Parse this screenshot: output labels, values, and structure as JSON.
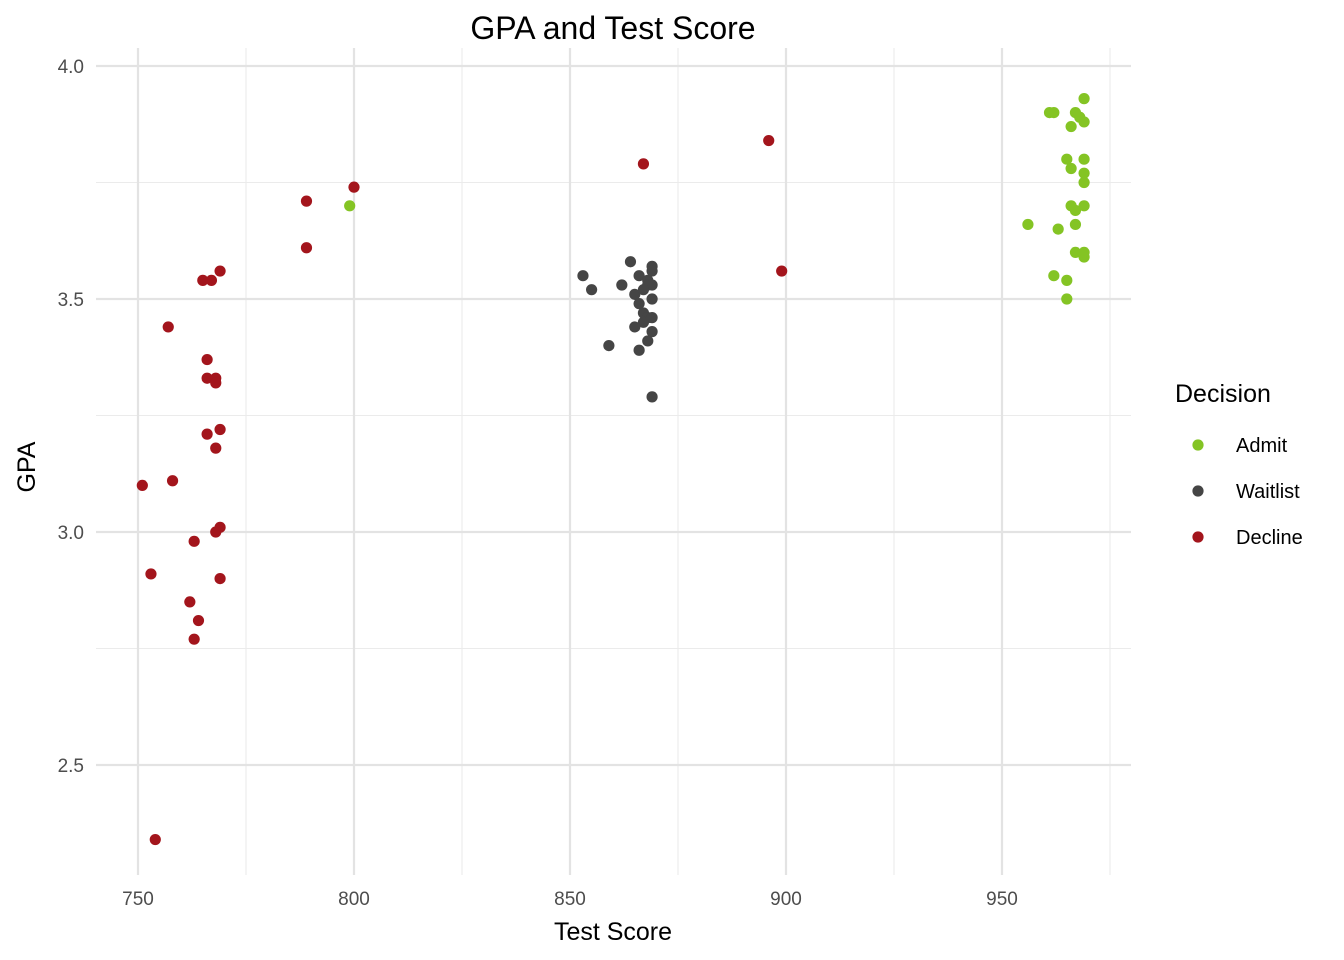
{
  "chart_data": {
    "type": "scatter",
    "title": "GPA and Test Score",
    "xlabel": "Test Score",
    "ylabel": "GPA",
    "xlim": [
      745,
      983
    ],
    "ylim": [
      2.27,
      4.05
    ],
    "x_ticks": [
      750,
      800,
      850,
      900,
      950
    ],
    "y_ticks": [
      2.5,
      3.0,
      3.5,
      4.0
    ],
    "x_tick_labels": [
      "750",
      "800",
      "850",
      "900",
      "950"
    ],
    "y_tick_labels": [
      "2.5",
      "3.0",
      "3.5",
      "4.0"
    ],
    "grid": true,
    "legend": {
      "title": "Decision",
      "position": "right"
    },
    "series": [
      {
        "name": "Admit",
        "color": "#84c424",
        "points": [
          [
            799,
            3.7
          ],
          [
            969,
            3.93
          ],
          [
            961,
            3.9
          ],
          [
            962,
            3.9
          ],
          [
            967,
            3.9
          ],
          [
            968,
            3.89
          ],
          [
            966,
            3.87
          ],
          [
            969,
            3.88
          ],
          [
            965,
            3.8
          ],
          [
            969,
            3.8
          ],
          [
            966,
            3.78
          ],
          [
            969,
            3.77
          ],
          [
            969,
            3.75
          ],
          [
            966,
            3.7
          ],
          [
            967,
            3.69
          ],
          [
            969,
            3.7
          ],
          [
            956,
            3.66
          ],
          [
            963,
            3.65
          ],
          [
            967,
            3.66
          ],
          [
            967,
            3.6
          ],
          [
            969,
            3.6
          ],
          [
            969,
            3.59
          ],
          [
            962,
            3.55
          ],
          [
            965,
            3.54
          ],
          [
            965,
            3.5
          ]
        ]
      },
      {
        "name": "Waitlist",
        "color": "#454545",
        "points": [
          [
            864,
            3.58
          ],
          [
            869,
            3.57
          ],
          [
            869,
            3.56
          ],
          [
            853,
            3.55
          ],
          [
            866,
            3.55
          ],
          [
            868,
            3.54
          ],
          [
            855,
            3.52
          ],
          [
            862,
            3.53
          ],
          [
            868,
            3.53
          ],
          [
            869,
            3.53
          ],
          [
            865,
            3.51
          ],
          [
            867,
            3.52
          ],
          [
            869,
            3.5
          ],
          [
            866,
            3.49
          ],
          [
            867,
            3.47
          ],
          [
            868,
            3.46
          ],
          [
            869,
            3.46
          ],
          [
            867,
            3.45
          ],
          [
            865,
            3.44
          ],
          [
            869,
            3.43
          ],
          [
            868,
            3.41
          ],
          [
            859,
            3.4
          ],
          [
            866,
            3.39
          ],
          [
            869,
            3.29
          ]
        ]
      },
      {
        "name": "Decline",
        "color": "#a3151c",
        "points": [
          [
            896,
            3.84
          ],
          [
            867,
            3.79
          ],
          [
            800,
            3.74
          ],
          [
            789,
            3.71
          ],
          [
            789,
            3.61
          ],
          [
            899,
            3.56
          ],
          [
            769,
            3.56
          ],
          [
            765,
            3.54
          ],
          [
            767,
            3.54
          ],
          [
            757,
            3.44
          ],
          [
            766,
            3.37
          ],
          [
            766,
            3.33
          ],
          [
            768,
            3.33
          ],
          [
            768,
            3.32
          ],
          [
            769,
            3.22
          ],
          [
            766,
            3.21
          ],
          [
            768,
            3.18
          ],
          [
            758,
            3.11
          ],
          [
            751,
            3.1
          ],
          [
            769,
            3.01
          ],
          [
            768,
            3.0
          ],
          [
            763,
            2.98
          ],
          [
            753,
            2.91
          ],
          [
            769,
            2.9
          ],
          [
            762,
            2.85
          ],
          [
            764,
            2.81
          ],
          [
            763,
            2.77
          ],
          [
            754,
            2.34
          ]
        ]
      }
    ]
  }
}
